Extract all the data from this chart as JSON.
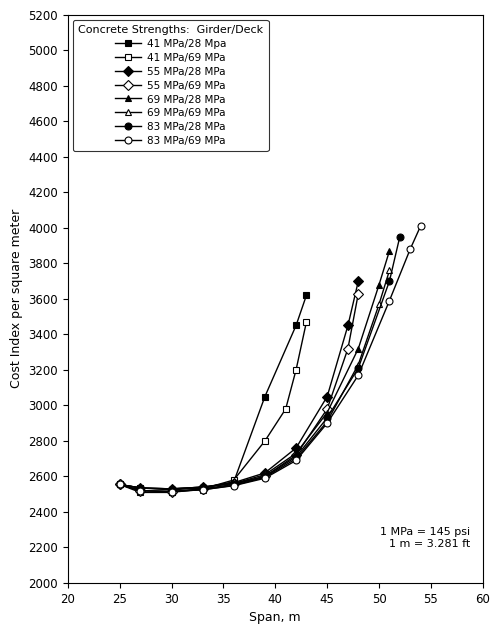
{
  "title": "Concrete Strengths:  Girder/Deck",
  "xlabel": "Span, m",
  "ylabel": "Cost Index per square meter",
  "xlim": [
    20,
    60
  ],
  "ylim": [
    2000,
    5200
  ],
  "xticks": [
    20,
    25,
    30,
    35,
    40,
    45,
    50,
    55,
    60
  ],
  "yticks": [
    2000,
    2200,
    2400,
    2600,
    2800,
    3000,
    3200,
    3400,
    3600,
    3800,
    4000,
    4200,
    4400,
    4600,
    4800,
    5000,
    5200
  ],
  "annotation": "1 MPa = 145 psi\n1 m = 3.281 ft",
  "series": [
    {
      "label": "41 MPa/28 Mpa",
      "marker": "s",
      "fillstyle": "full",
      "x": [
        25,
        27,
        30,
        33,
        36,
        39,
        42,
        43
      ],
      "y": [
        2555,
        2535,
        2525,
        2535,
        2570,
        3050,
        3450,
        3620
      ]
    },
    {
      "label": "41 MPa/69 MPa",
      "marker": "s",
      "fillstyle": "none",
      "x": [
        25,
        27,
        30,
        33,
        36,
        39,
        41,
        42,
        43
      ],
      "y": [
        2555,
        2510,
        2510,
        2530,
        2580,
        2800,
        2980,
        3200,
        3470
      ]
    },
    {
      "label": "55 MPa/28 MPa",
      "marker": "D",
      "fillstyle": "full",
      "x": [
        25,
        27,
        30,
        33,
        36,
        39,
        42,
        45,
        47,
        48
      ],
      "y": [
        2555,
        2535,
        2530,
        2540,
        2565,
        2620,
        2760,
        3050,
        3450,
        3700
      ]
    },
    {
      "label": "55 MPa/69 MPa",
      "marker": "D",
      "fillstyle": "none",
      "x": [
        25,
        27,
        30,
        33,
        36,
        39,
        42,
        45,
        47,
        48
      ],
      "y": [
        2555,
        2520,
        2515,
        2530,
        2555,
        2600,
        2720,
        2980,
        3320,
        3630
      ]
    },
    {
      "label": "69 MPa/28 MPa",
      "marker": "^",
      "fillstyle": "full",
      "x": [
        25,
        27,
        30,
        33,
        36,
        39,
        42,
        45,
        48,
        50,
        51
      ],
      "y": [
        2555,
        2535,
        2530,
        2540,
        2560,
        2610,
        2730,
        2960,
        3320,
        3680,
        3870
      ]
    },
    {
      "label": "69 MPa/69 MPa",
      "marker": "^",
      "fillstyle": "none",
      "x": [
        25,
        27,
        30,
        33,
        36,
        39,
        42,
        45,
        48,
        50,
        51
      ],
      "y": [
        2555,
        2520,
        2515,
        2525,
        2550,
        2595,
        2700,
        2910,
        3230,
        3570,
        3760
      ]
    },
    {
      "label": "83 MPa/28 MPa",
      "marker": "o",
      "fillstyle": "full",
      "x": [
        25,
        27,
        30,
        33,
        36,
        39,
        42,
        45,
        48,
        51,
        52
      ],
      "y": [
        2555,
        2535,
        2530,
        2540,
        2560,
        2600,
        2710,
        2930,
        3210,
        3700,
        3950
      ]
    },
    {
      "label": "83 MPa/69 MPa",
      "marker": "o",
      "fillstyle": "none",
      "x": [
        25,
        27,
        30,
        33,
        36,
        39,
        42,
        45,
        48,
        51,
        53,
        54
      ],
      "y": [
        2555,
        2520,
        2515,
        2525,
        2548,
        2590,
        2690,
        2900,
        3170,
        3590,
        3880,
        4010
      ]
    }
  ]
}
